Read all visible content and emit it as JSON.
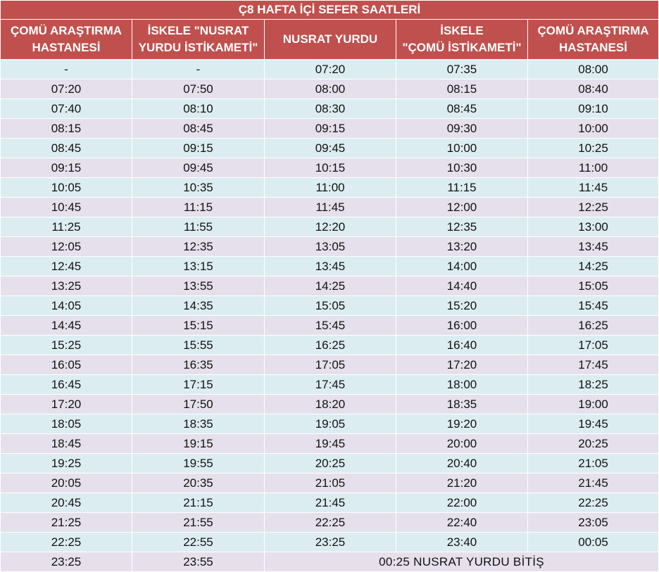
{
  "title": "Ç8 HAFTA İÇİ SEFER SAATLERİ",
  "headers": [
    [
      "ÇOMÜ ARAŞTIRMA",
      "HASTANESİ"
    ],
    [
      "İSKELE \"NUSRAT",
      "YURDU İSTİKAMETİ\""
    ],
    [
      "NUSRAT YURDU"
    ],
    [
      "İSKELE",
      "\"ÇOMÜ İSTİKAMETİ\""
    ],
    [
      "ÇOMÜ ARAŞTIRMA",
      "HASTANESİ"
    ]
  ],
  "rows": [
    [
      "-",
      "-",
      "07:20",
      "07:35",
      "08:00"
    ],
    [
      "07:20",
      "07:50",
      "08:00",
      "08:15",
      "08:40"
    ],
    [
      "07:40",
      "08:10",
      "08:30",
      "08:45",
      "09:10"
    ],
    [
      "08:15",
      "08:45",
      "09:15",
      "09:30",
      "10:00"
    ],
    [
      "08:45",
      "09:15",
      "09:45",
      "10:00",
      "10:25"
    ],
    [
      "09:15",
      "09:45",
      "10:15",
      "10:30",
      "11:00"
    ],
    [
      "10:05",
      "10:35",
      "11:00",
      "11:15",
      "11:45"
    ],
    [
      "10:45",
      "11:15",
      "11:45",
      "12:00",
      "12:25"
    ],
    [
      "11:25",
      "11:55",
      "12:20",
      "12:35",
      "13:00"
    ],
    [
      "12:05",
      "12:35",
      "13:05",
      "13:20",
      "13:45"
    ],
    [
      "12:45",
      "13:15",
      "13:45",
      "14:00",
      "14:25"
    ],
    [
      "13:25",
      "13:55",
      "14:25",
      "14:40",
      "15:05"
    ],
    [
      "14:05",
      "14:35",
      "15:05",
      "15:20",
      "15:45"
    ],
    [
      "14:45",
      "15:15",
      "15:45",
      "16:00",
      "16:25"
    ],
    [
      "15:25",
      "15:55",
      "16:25",
      "16:40",
      "17:05"
    ],
    [
      "16:05",
      "16:35",
      "17:05",
      "17:20",
      "17:45"
    ],
    [
      "16:45",
      "17:15",
      "17:45",
      "18:00",
      "18:25"
    ],
    [
      "17:20",
      "17:50",
      "18:20",
      "18:35",
      "19:00"
    ],
    [
      "18:05",
      "18:35",
      "19:05",
      "19:20",
      "19:45"
    ],
    [
      "18:45",
      "19:15",
      "19:45",
      "20:00",
      "20:25"
    ],
    [
      "19:25",
      "19:55",
      "20:25",
      "20:40",
      "21:05"
    ],
    [
      "20:05",
      "20:35",
      "21:05",
      "21:20",
      "21:45"
    ],
    [
      "20:45",
      "21:15",
      "21:45",
      "22:00",
      "22:25"
    ],
    [
      "21:25",
      "21:55",
      "22:25",
      "22:40",
      "23:05"
    ],
    [
      "22:25",
      "22:55",
      "23:25",
      "23:40",
      "00:05"
    ]
  ],
  "last_row": {
    "cells": [
      "23:25",
      "23:55"
    ],
    "note": "00:25 NUSRAT YURDU BİTİŞ"
  },
  "colors": {
    "header_bg": "#c0504d",
    "header_text": "#ffffff",
    "row_blue": "#dcedf2",
    "row_lavender": "#e5e0ec"
  }
}
